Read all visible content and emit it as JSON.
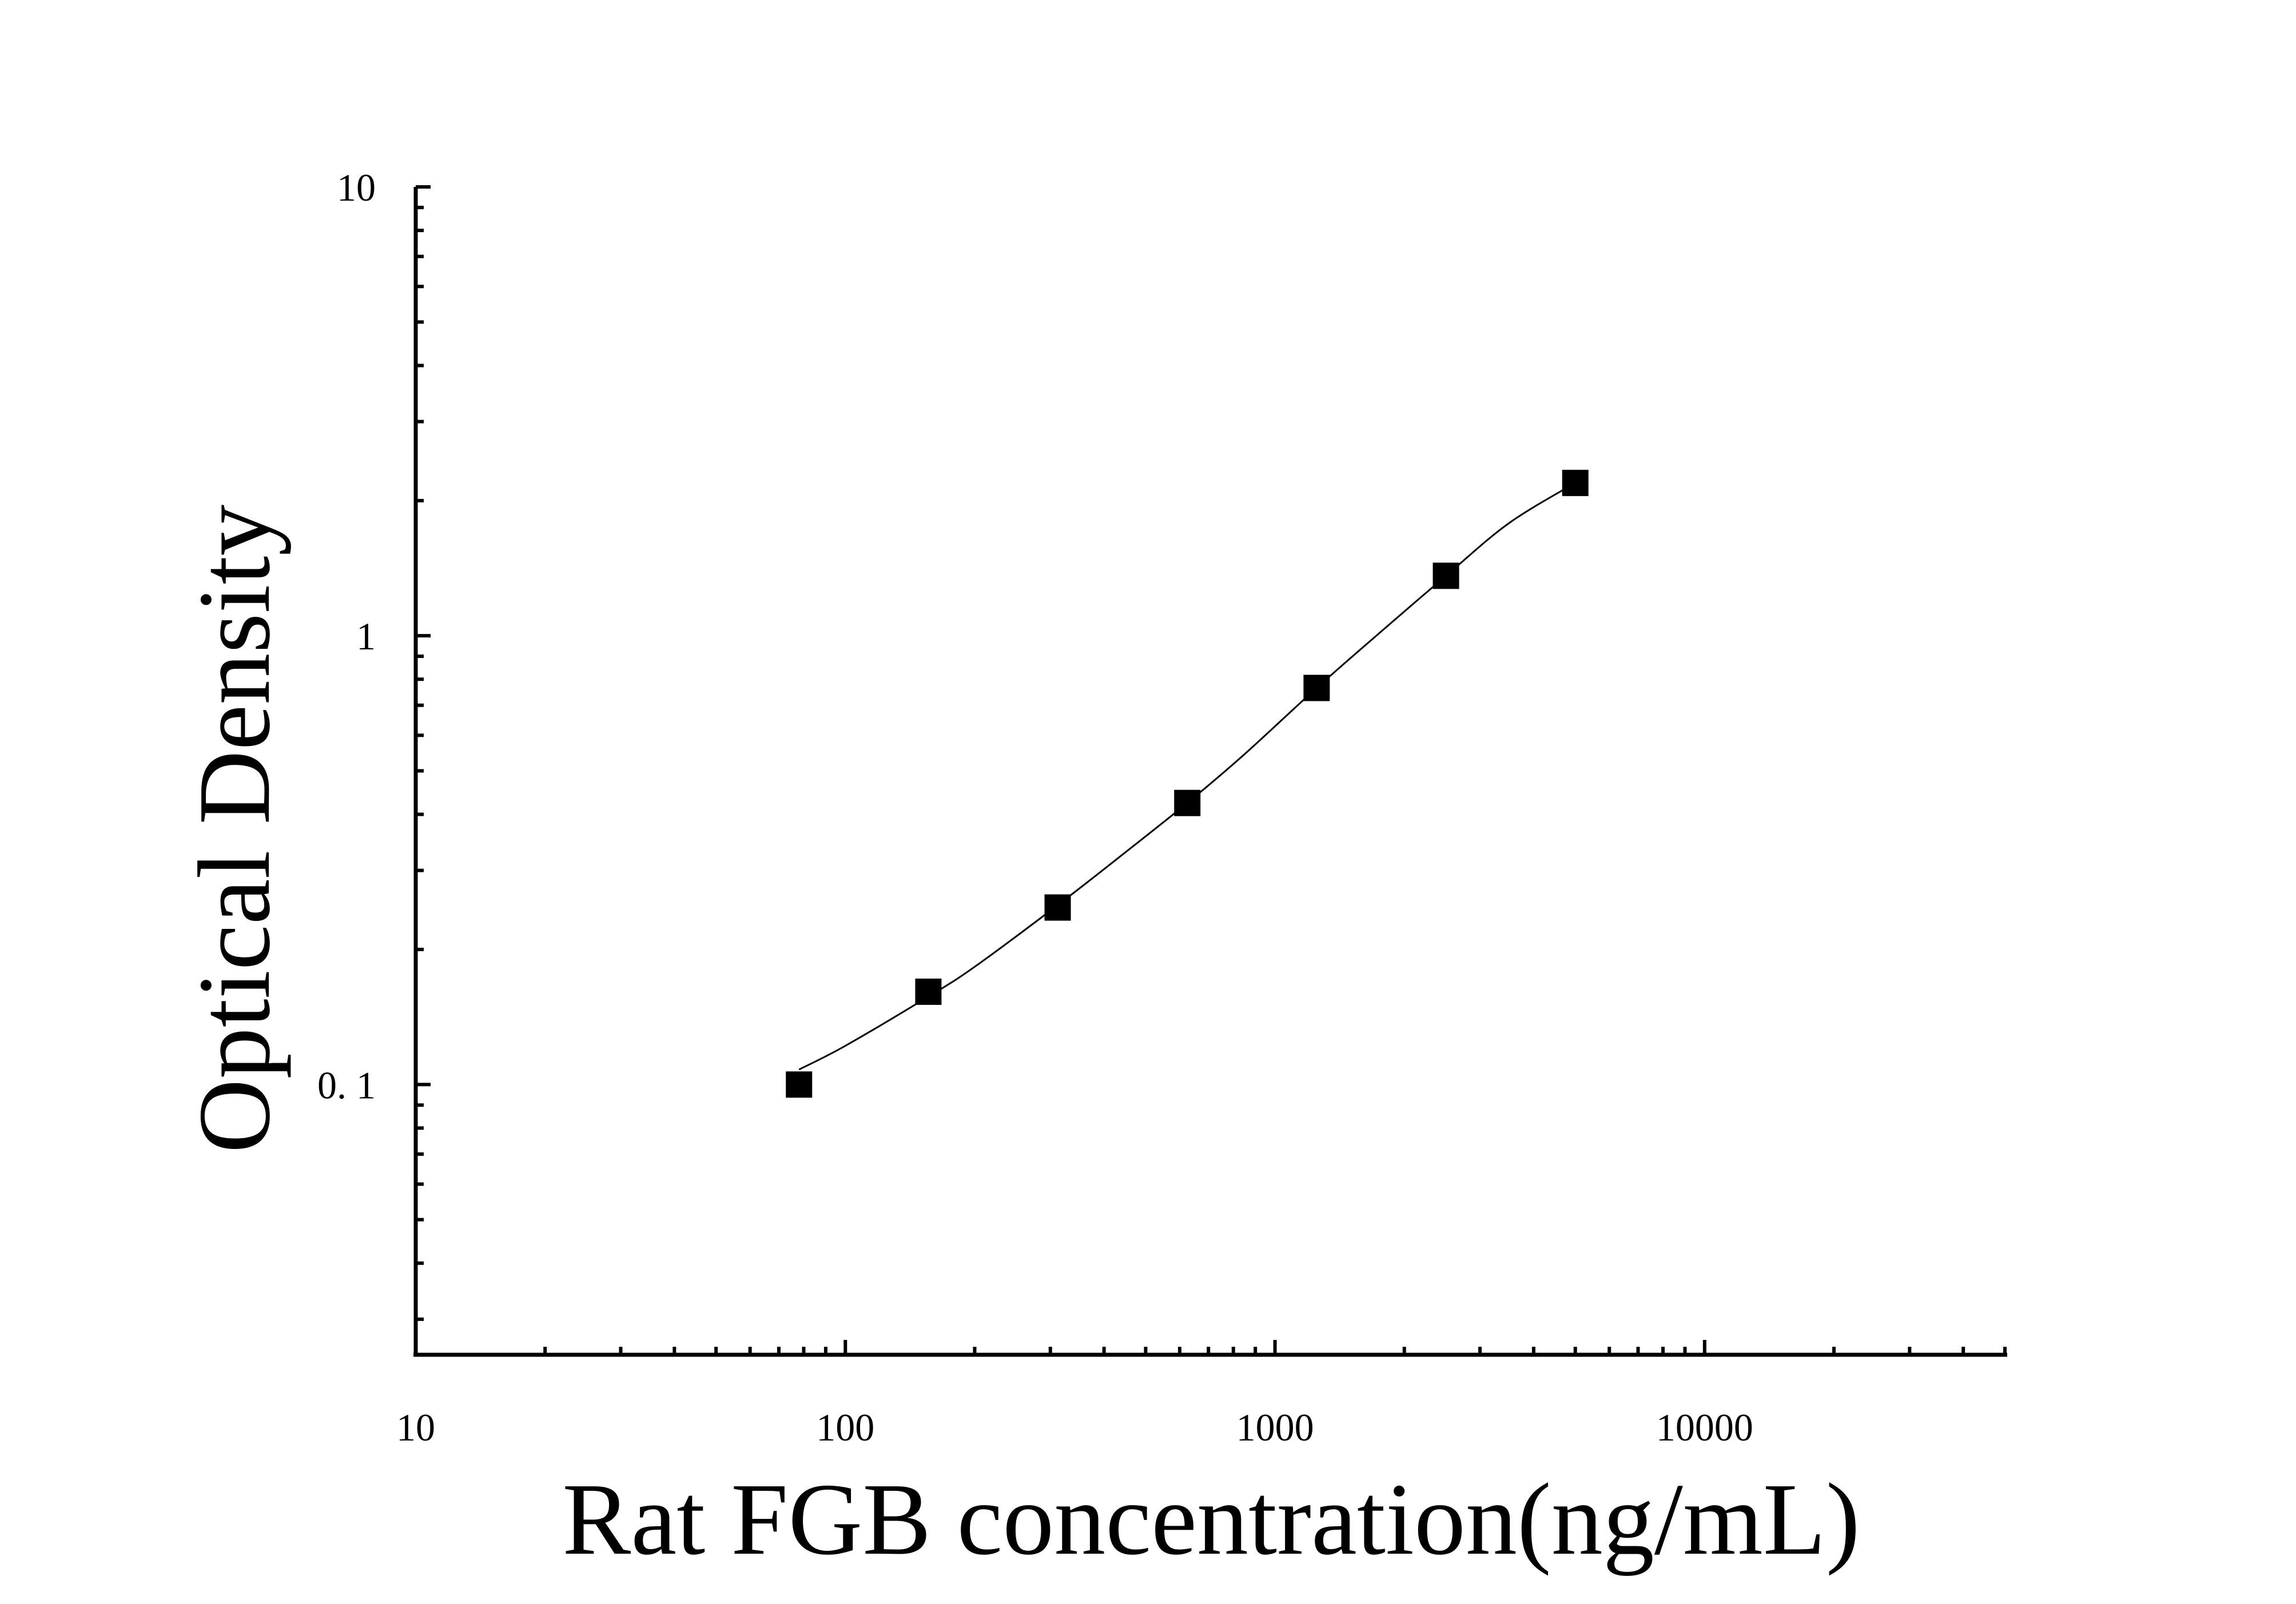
{
  "chart_data": {
    "type": "scatter",
    "xlabel": "Rat FGB concentration(ng/mL)",
    "ylabel": "Optical Density",
    "x_scale": "log",
    "y_scale": "log",
    "xlim": [
      10,
      50000
    ],
    "ylim": [
      0.025,
      10
    ],
    "x_ticks": [
      {
        "value": 10,
        "label": "10"
      },
      {
        "value": 100,
        "label": "100"
      },
      {
        "value": 1000,
        "label": "1000"
      },
      {
        "value": 10000,
        "label": "10000"
      }
    ],
    "y_ticks": [
      {
        "value": 0.1,
        "label": "0. 1"
      },
      {
        "value": 1,
        "label": "1"
      },
      {
        "value": 10,
        "label": "10"
      }
    ],
    "grid": false,
    "marker": "square",
    "color": "#000000",
    "series": [
      {
        "x": [
          78,
          156,
          312,
          625,
          1250,
          2500,
          5000
        ],
        "y": [
          0.1,
          0.161,
          0.248,
          0.424,
          0.765,
          1.36,
          2.19
        ]
      }
    ],
    "fit_curve": {
      "x": [
        78,
        100,
        156,
        200,
        312,
        450,
        625,
        850,
        1250,
        1700,
        2500,
        3500,
        5000
      ],
      "y": [
        0.108,
        0.122,
        0.157,
        0.183,
        0.251,
        0.33,
        0.424,
        0.545,
        0.765,
        0.99,
        1.36,
        1.78,
        2.19
      ]
    }
  }
}
